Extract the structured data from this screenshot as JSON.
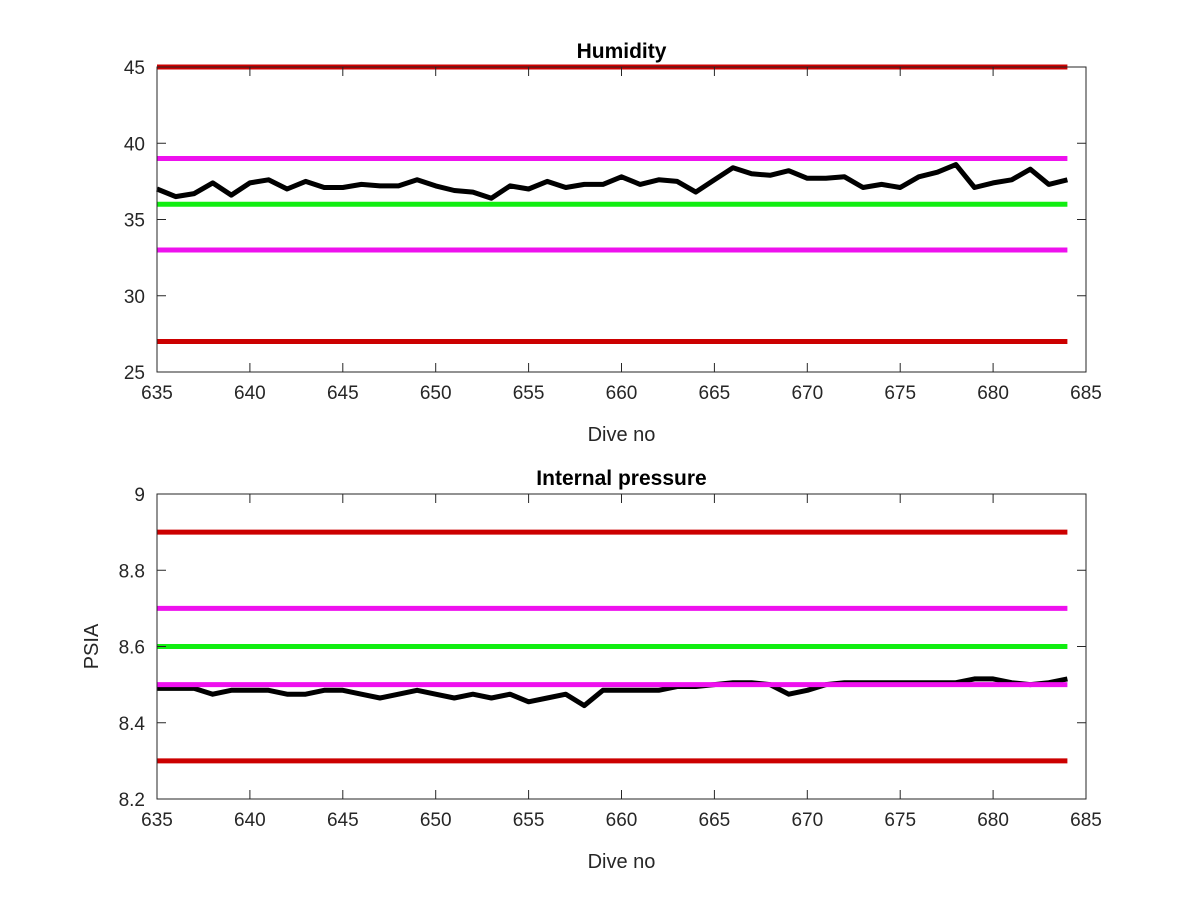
{
  "chart_data": [
    {
      "type": "line",
      "title": "Humidity",
      "xlabel": "Dive no",
      "ylabel": "",
      "xlim": [
        635,
        685
      ],
      "ylim": [
        25,
        45
      ],
      "xticks": [
        635,
        640,
        645,
        650,
        655,
        660,
        665,
        670,
        675,
        680,
        685
      ],
      "yticks": [
        25,
        30,
        35,
        40,
        45
      ],
      "grid": false,
      "series": [
        {
          "color": "#000000",
          "x": [
            635,
            636,
            637,
            638,
            639,
            640,
            641,
            642,
            643,
            644,
            645,
            646,
            647,
            648,
            649,
            650,
            651,
            652,
            653,
            654,
            655,
            656,
            657,
            658,
            659,
            660,
            661,
            662,
            663,
            664,
            665,
            666,
            667,
            668,
            669,
            670,
            671,
            672,
            673,
            674,
            675,
            676,
            677,
            678,
            679,
            680,
            681,
            682,
            683,
            684
          ],
          "y": [
            37.0,
            36.5,
            36.7,
            37.4,
            36.6,
            37.4,
            37.6,
            37.0,
            37.5,
            37.1,
            37.1,
            37.3,
            37.2,
            37.2,
            37.6,
            37.2,
            36.9,
            36.8,
            36.4,
            37.2,
            37.0,
            37.5,
            37.1,
            37.3,
            37.3,
            37.8,
            37.3,
            37.6,
            37.5,
            36.8,
            37.6,
            38.4,
            38.0,
            37.9,
            38.2,
            37.7,
            37.7,
            37.8,
            37.1,
            37.3,
            37.1,
            37.8,
            38.1,
            38.6,
            37.1,
            37.4,
            37.6,
            38.3,
            37.3,
            37.6
          ]
        },
        {
          "color": "#cc0000",
          "x": [
            635,
            684
          ],
          "y": [
            45,
            45
          ]
        },
        {
          "color": "#cc0000",
          "x": [
            635,
            684
          ],
          "y": [
            27,
            27
          ]
        },
        {
          "color": "#ee11ee",
          "x": [
            635,
            684
          ],
          "y": [
            39,
            39
          ]
        },
        {
          "color": "#ee11ee",
          "x": [
            635,
            684
          ],
          "y": [
            33,
            33
          ]
        },
        {
          "color": "#11ee11",
          "x": [
            635,
            684
          ],
          "y": [
            36,
            36
          ]
        }
      ]
    },
    {
      "type": "line",
      "title": "Internal pressure",
      "xlabel": "Dive no",
      "ylabel": "PSIA",
      "xlim": [
        635,
        685
      ],
      "ylim": [
        8.2,
        9
      ],
      "xticks": [
        635,
        640,
        645,
        650,
        655,
        660,
        665,
        670,
        675,
        680,
        685
      ],
      "yticks": [
        8.2,
        8.4,
        8.6,
        8.8,
        9
      ],
      "grid": false,
      "series": [
        {
          "color": "#000000",
          "x": [
            635,
            636,
            637,
            638,
            639,
            640,
            641,
            642,
            643,
            644,
            645,
            646,
            647,
            648,
            649,
            650,
            651,
            652,
            653,
            654,
            655,
            656,
            657,
            658,
            659,
            660,
            661,
            662,
            663,
            664,
            665,
            666,
            667,
            668,
            669,
            670,
            671,
            672,
            673,
            674,
            675,
            676,
            677,
            678,
            679,
            680,
            681,
            682,
            683,
            684
          ],
          "y": [
            8.49,
            8.49,
            8.49,
            8.475,
            8.485,
            8.485,
            8.485,
            8.475,
            8.475,
            8.485,
            8.485,
            8.475,
            8.465,
            8.475,
            8.485,
            8.475,
            8.465,
            8.475,
            8.465,
            8.475,
            8.455,
            8.465,
            8.475,
            8.445,
            8.485,
            8.485,
            8.485,
            8.485,
            8.495,
            8.495,
            8.5,
            8.505,
            8.505,
            8.5,
            8.475,
            8.485,
            8.5,
            8.505,
            8.505,
            8.505,
            8.505,
            8.505,
            8.505,
            8.505,
            8.515,
            8.515,
            8.505,
            8.5,
            8.505,
            8.515
          ]
        },
        {
          "color": "#cc0000",
          "x": [
            635,
            684
          ],
          "y": [
            8.9,
            8.9
          ]
        },
        {
          "color": "#cc0000",
          "x": [
            635,
            684
          ],
          "y": [
            8.3,
            8.3
          ]
        },
        {
          "color": "#ee11ee",
          "x": [
            635,
            684
          ],
          "y": [
            8.7,
            8.7
          ]
        },
        {
          "color": "#ee11ee",
          "x": [
            635,
            684
          ],
          "y": [
            8.5,
            8.5
          ]
        },
        {
          "color": "#11ee11",
          "x": [
            635,
            684
          ],
          "y": [
            8.6,
            8.6
          ]
        }
      ]
    }
  ]
}
